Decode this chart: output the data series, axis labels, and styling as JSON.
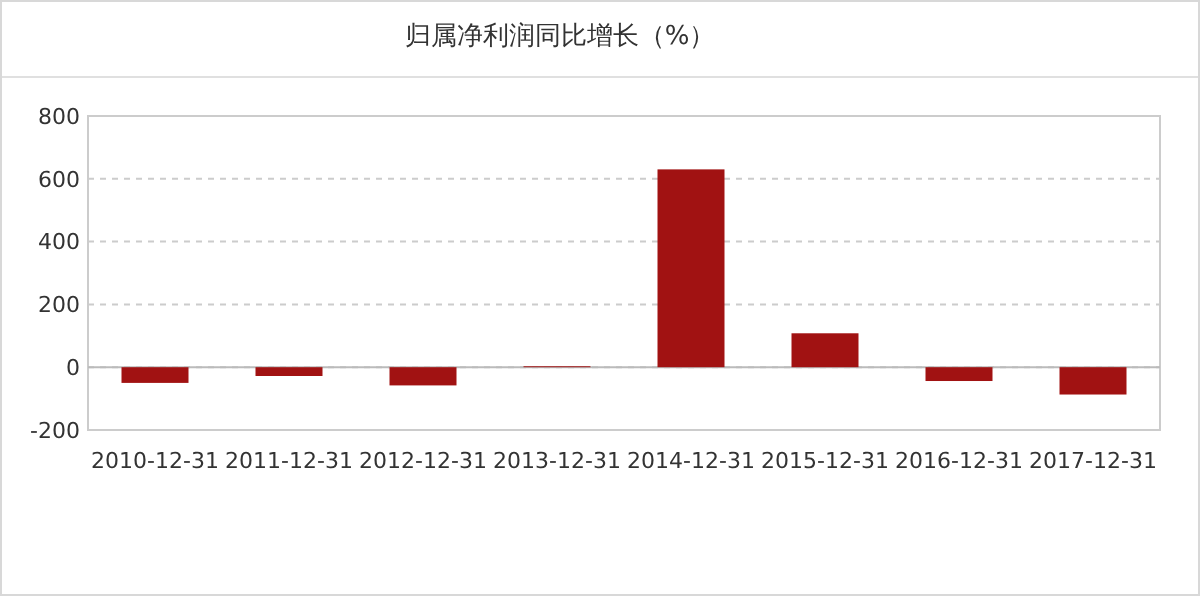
{
  "chart_data": {
    "type": "bar",
    "title": "归属净利润同比增长（%）",
    "categories": [
      "2010-12-31",
      "2011-12-31",
      "2012-12-31",
      "2013-12-31",
      "2014-12-31",
      "2015-12-31",
      "2016-12-31",
      "2017-12-31"
    ],
    "values": [
      -50,
      -28,
      -58,
      3,
      630,
      108,
      -44,
      -87
    ],
    "color": "#a11212",
    "ylim": [
      -200,
      800
    ],
    "yticks": [
      -200,
      0,
      200,
      400,
      600,
      800
    ],
    "grid": "y"
  }
}
